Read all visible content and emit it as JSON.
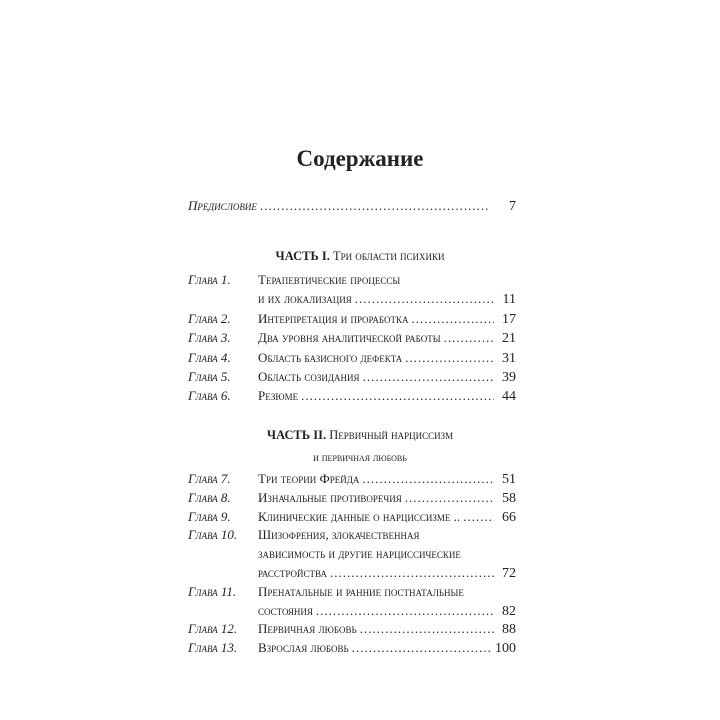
{
  "title": "Содержание",
  "preface": {
    "label": "Предисловие",
    "page": "7"
  },
  "parts": [
    {
      "number": "ЧАСТЬ I.",
      "title_lines": [
        "Три области психики"
      ],
      "chapters": [
        {
          "label": "Глава 1.",
          "lines": [
            "Терапевтические процессы",
            "и их локализация"
          ],
          "page": "11"
        },
        {
          "label": "Глава 2.",
          "lines": [
            "Интерпретация и проработка"
          ],
          "page": "17"
        },
        {
          "label": "Глава 3.",
          "lines": [
            "Два уровня аналитической работы"
          ],
          "page": "21"
        },
        {
          "label": "Глава 4.",
          "lines": [
            "Область базисного дефекта"
          ],
          "page": "31"
        },
        {
          "label": "Глава 5.",
          "lines": [
            "Область созидания"
          ],
          "page": "39"
        },
        {
          "label": "Глава 6.",
          "lines": [
            "Резюме"
          ],
          "page": "44"
        }
      ]
    },
    {
      "number": "ЧАСТЬ II.",
      "title_lines": [
        "Первичный нарциссизм",
        "и первичная любовь"
      ],
      "chapters": [
        {
          "label": "Глава 7.",
          "lines": [
            "Три теории Фрейда"
          ],
          "page": "51"
        },
        {
          "label": "Глава 8.",
          "lines": [
            "Изначальные противоречия"
          ],
          "page": "58"
        },
        {
          "label": "Глава 9.",
          "lines": [
            "Клинические данные о нарциссизме .."
          ],
          "page": "66"
        },
        {
          "label": "Глава 10.",
          "lines": [
            "Шизофрения, злокачественная",
            "зависимость и другие нарциссические",
            "расстройства"
          ],
          "page": "72"
        },
        {
          "label": "Глава 11.",
          "lines": [
            "Пренатальные и ранние постнатальные",
            "состояния"
          ],
          "page": "82"
        },
        {
          "label": "Глава 12.",
          "lines": [
            "Первичная любовь"
          ],
          "page": "88"
        },
        {
          "label": "Глава 13.",
          "lines": [
            "Взрослая любовь"
          ],
          "page": "100"
        }
      ]
    }
  ]
}
